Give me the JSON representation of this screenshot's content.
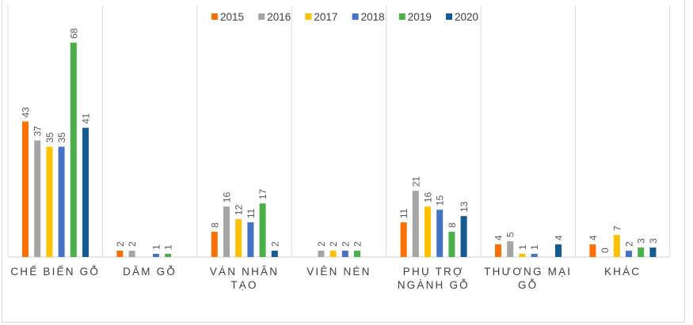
{
  "chart_data": {
    "type": "bar",
    "title": "",
    "xlabel": "",
    "ylabel": "",
    "ylim": [
      0,
      68
    ],
    "grid": false,
    "legend_position": "top",
    "categories": [
      [
        "CHẾ BIẾN GỖ"
      ],
      [
        "DĂM GỖ"
      ],
      [
        "VÁN NHÂN",
        "TẠO"
      ],
      [
        "VIÊN NÉN"
      ],
      [
        "PHỤ TRỢ",
        "NGÀNH GỖ"
      ],
      [
        "THƯƠNG MẠI",
        "GỖ"
      ],
      [
        "KHÁC"
      ]
    ],
    "series": [
      {
        "name": "2015",
        "color": "#ff7000",
        "values": [
          43,
          2,
          8,
          null,
          11,
          4,
          4
        ]
      },
      {
        "name": "2016",
        "color": "#a5a5a5",
        "values": [
          37,
          2,
          16,
          2,
          21,
          5,
          0
        ]
      },
      {
        "name": "2017",
        "color": "#ffc000",
        "values": [
          35,
          null,
          12,
          2,
          16,
          1,
          7
        ]
      },
      {
        "name": "2018",
        "color": "#4472c4",
        "values": [
          35,
          1,
          11,
          2,
          15,
          1,
          2
        ]
      },
      {
        "name": "2019",
        "color": "#4bb04a",
        "values": [
          68,
          1,
          17,
          2,
          8,
          null,
          3
        ]
      },
      {
        "name": "2020",
        "color": "#175a92",
        "values": [
          41,
          null,
          2,
          null,
          13,
          4,
          3
        ]
      }
    ]
  }
}
